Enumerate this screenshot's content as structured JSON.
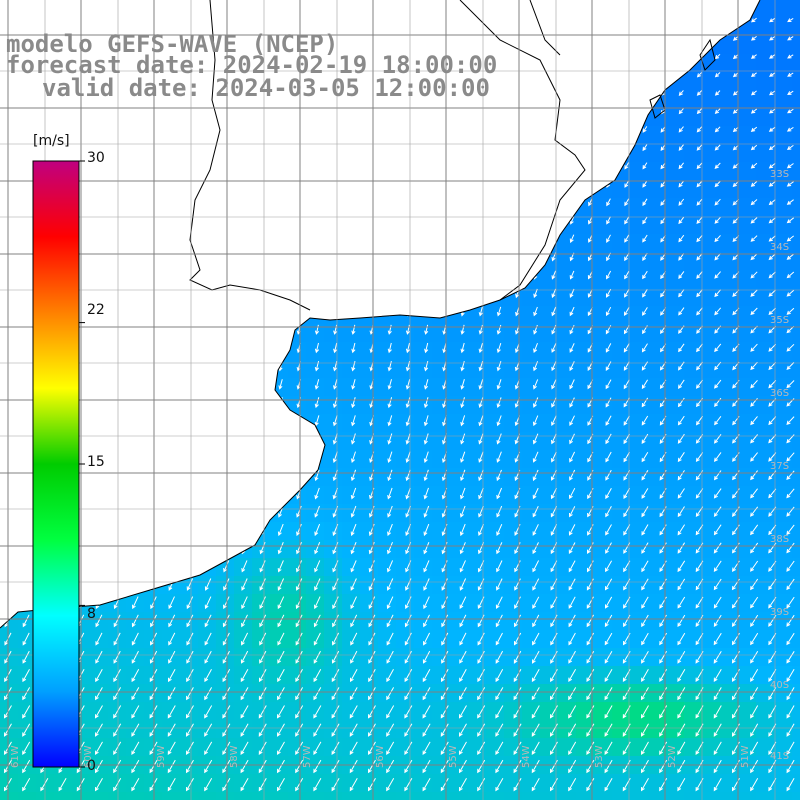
{
  "header": {
    "model": "modelo GEFS-WAVE (NCEP)",
    "forecast_date": "forecast date: 2024-02-19 18:00:00",
    "valid_date": "valid date: 2024-03-05 12:00:00"
  },
  "colorbar": {
    "unit": "[m/s]",
    "min": 0,
    "max": 30,
    "tick_labels": [
      "30",
      "22",
      "15",
      "8",
      "0"
    ],
    "tick_values": [
      30,
      22,
      15,
      8,
      0
    ],
    "colors": [
      "#0000ff",
      "#00a0ff",
      "#00ffff",
      "#00ff40",
      "#00cc00",
      "#ffff00",
      "#ff8000",
      "#ff0000",
      "#c00080"
    ]
  },
  "map": {
    "lat_labels": [
      "33S",
      "34S",
      "35S",
      "36S",
      "37S",
      "38S",
      "39S",
      "40S",
      "41S"
    ],
    "lon_labels": [
      "61W",
      "60W",
      "59W",
      "58W",
      "57W",
      "56W",
      "55W",
      "54W",
      "53W",
      "52W",
      "51W"
    ],
    "wind_direction_from": "northeast",
    "colors": {
      "land": "#ffffff",
      "coastline": "#000000",
      "grid": "#808080",
      "arrow": "#ffffff"
    }
  }
}
